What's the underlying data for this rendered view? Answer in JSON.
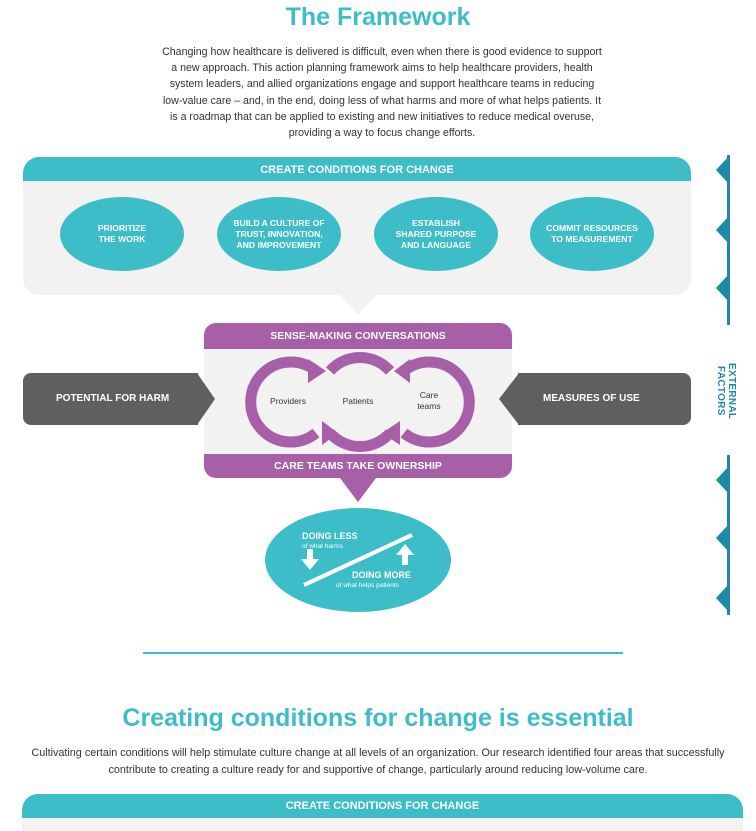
{
  "title": "The Framework",
  "intro": "Changing how healthcare is delivered is difficult, even when there is good evidence to support a new approach. This action planning framework aims to help healthcare providers, health system leaders, and allied organizations engage and support healthcare teams in reducing low-value care – and, in the end, doing less of what harms and more of what helps patients. It is a roadmap that can be applied to existing and new initiatives to reduce medical overuse, providing a way to focus change efforts.",
  "conditions": {
    "header": "CREATE CONDITIONS FOR CHANGE",
    "items": [
      "PRIORITIZE\nTHE WORK",
      "BUILD A CULTURE OF\nTRUST, INNOVATION,\nAND IMPROVEMENT",
      "ESTABLISH\nSHARED PURPOSE\nAND LANGUAGE",
      "COMMIT RESOURCES\nTO MEASUREMENT"
    ]
  },
  "sense_making": {
    "header": "SENSE-MAKING CONVERSATIONS",
    "loop_labels": [
      "Providers",
      "Patients",
      "Care teams"
    ],
    "footer": "CARE TEAMS TAKE OWNERSHIP"
  },
  "left_input": "POTENTIAL FOR HARM",
  "right_input": "MEASURES OF USE",
  "external_factors": "EXTERNAL FACTORS",
  "outcome": {
    "less_title": "DOING LESS",
    "less_sub": "of what harms",
    "more_title": "DOING MORE",
    "more_sub": "of what helps patients"
  },
  "colors": {
    "teal": "#3dbdc8",
    "purple": "#a760a8",
    "dark_grey": "#5f5f5f",
    "light_grey": "#f2f2f2",
    "external_blue": "#1f8aa8"
  },
  "section2": {
    "title": "Creating conditions for change is essential",
    "text": "Cultivating certain conditions will help stimulate culture change at all levels of an organization. Our research identified four areas that successfully contribute to creating a culture ready for and supportive of change, particularly around reducing low-volume care.",
    "bar": "CREATE CONDITIONS FOR CHANGE"
  }
}
